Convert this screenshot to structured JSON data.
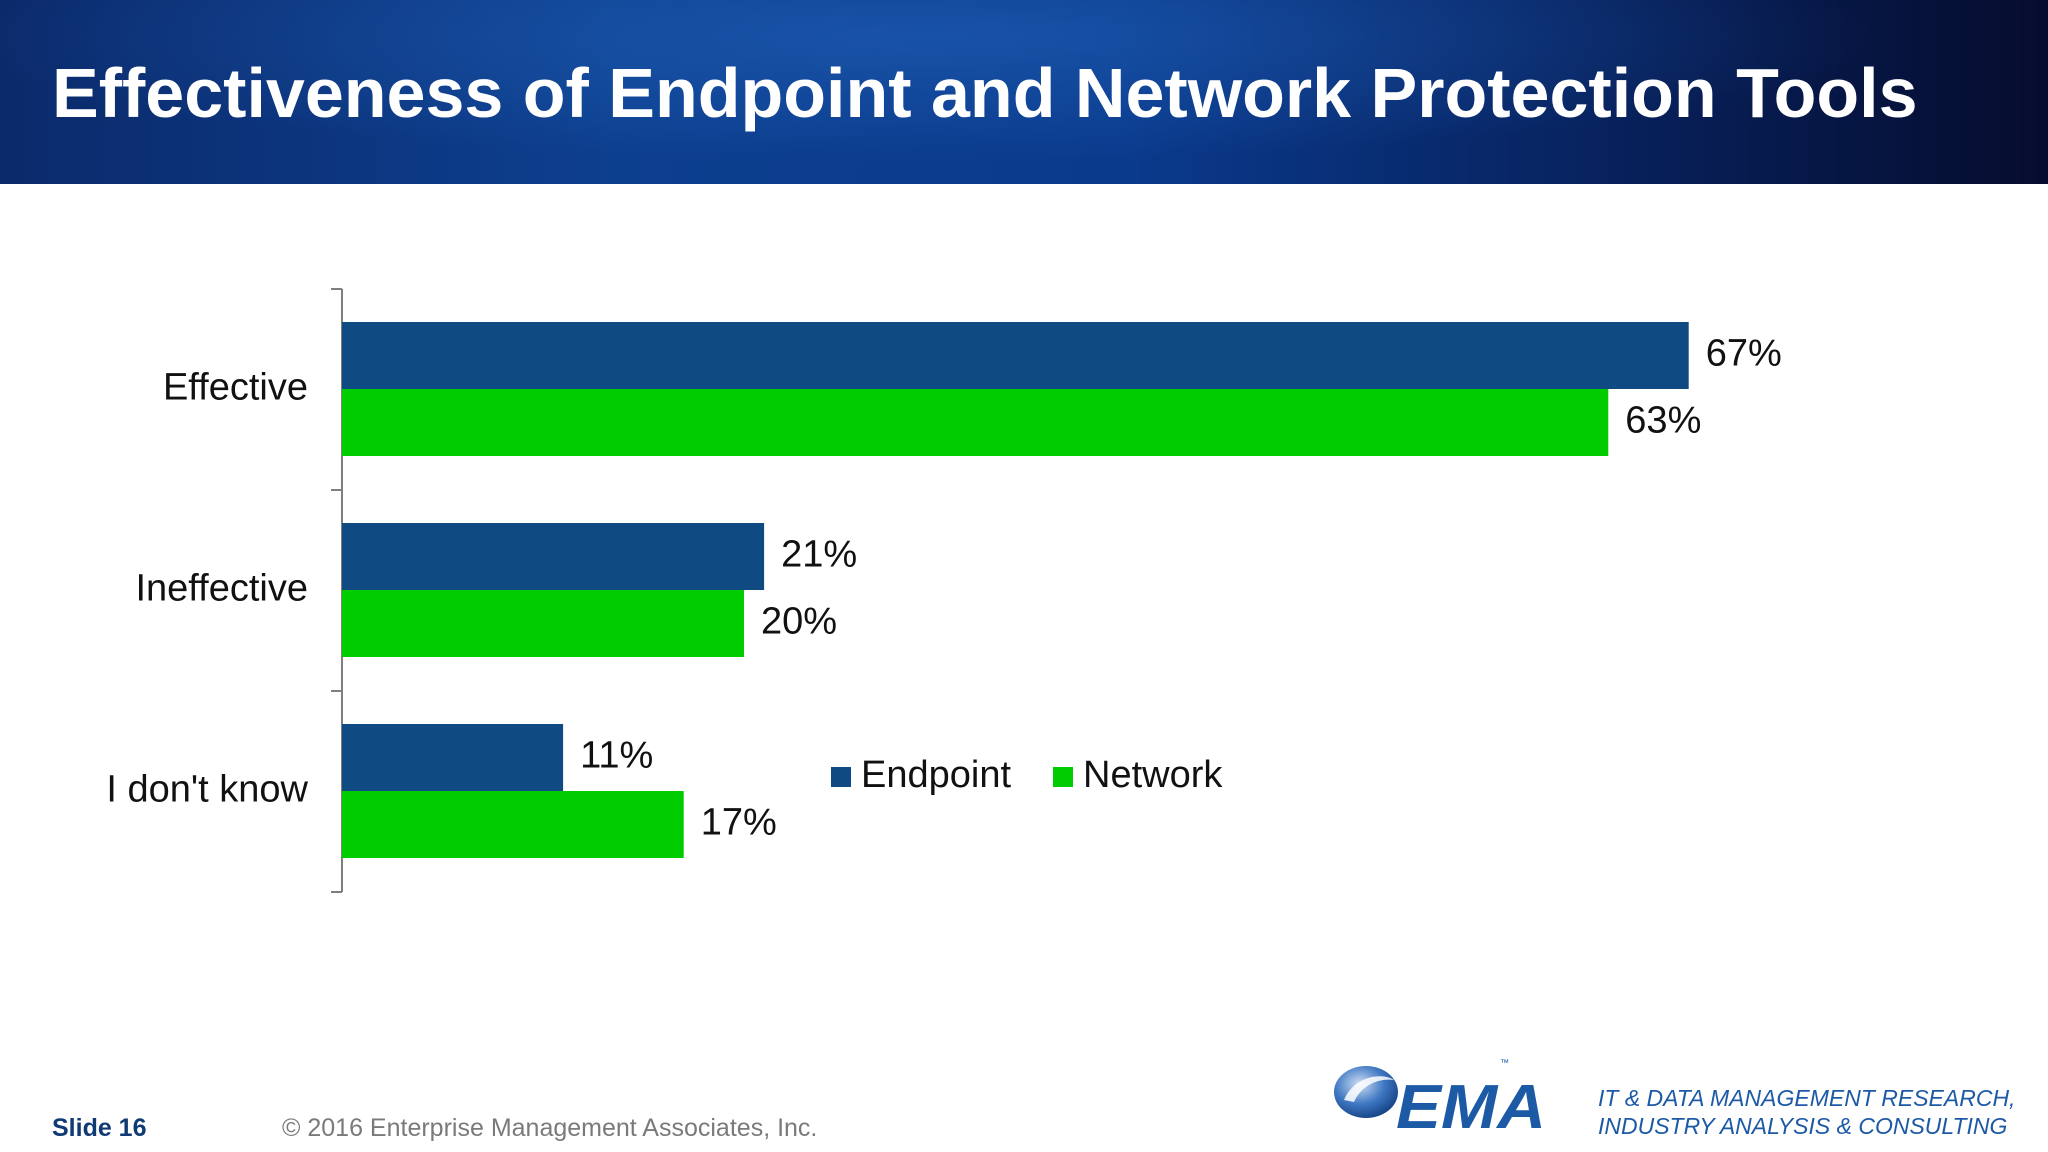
{
  "slide": {
    "title": "Effectiveness of Endpoint and Network Protection Tools",
    "slide_label": "Slide 16",
    "copyright": "© 2016 Enterprise Management Associates, Inc.",
    "logo_text": "EMA",
    "tagline_line1": "IT & DATA MANAGEMENT RESEARCH,",
    "tagline_line2": "INDUSTRY ANALYSIS & CONSULTING"
  },
  "colors": {
    "endpoint": "#0f4a82",
    "network": "#00cc00",
    "header_text": "#ffffff",
    "brand_blue": "#1d5aa6"
  },
  "chart_data": {
    "type": "bar",
    "orientation": "horizontal",
    "categories": [
      "Effective",
      "Ineffective",
      "I don't know"
    ],
    "series": [
      {
        "name": "Endpoint",
        "values": [
          67,
          21,
          11
        ],
        "labels": [
          "67%",
          "21%",
          "11%"
        ]
      },
      {
        "name": "Network",
        "values": [
          63,
          20,
          17
        ],
        "labels": [
          "63%",
          "20%",
          "17%"
        ]
      }
    ],
    "value_suffix": "%",
    "xlim": [
      0,
      80
    ],
    "grid": false,
    "legend_position": "bottom"
  }
}
